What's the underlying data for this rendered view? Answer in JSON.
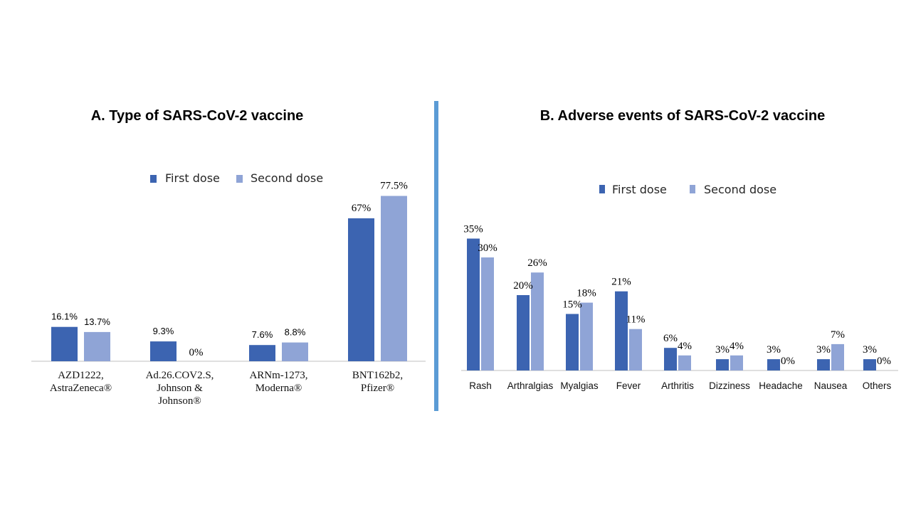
{
  "colors": {
    "first": "#3c64b1",
    "second": "#8fa4d6",
    "divider": "#5b9bd5",
    "axis": "#bfbfbf"
  },
  "chart_data": [
    {
      "type": "bar",
      "title": "A. Type of SARS-CoV-2 vaccine",
      "legend": [
        "First dose",
        "Second dose"
      ],
      "legend_position": "top-center",
      "categories": [
        [
          "AZD1222,",
          "AstraZeneca®"
        ],
        [
          "Ad.26.COV2.S,",
          "Johnson &",
          "Johnson®"
        ],
        [
          "ARNm-1273,",
          "Moderna®"
        ],
        [
          "BNT162b2,",
          "Pfizer®"
        ]
      ],
      "series": [
        {
          "name": "First dose",
          "values": [
            16.1,
            9.3,
            7.6,
            67
          ],
          "labels": [
            "16.1%",
            "9.3%",
            "7.6%",
            "67%"
          ]
        },
        {
          "name": "Second dose",
          "values": [
            13.7,
            0,
            8.8,
            77.5
          ],
          "labels": [
            "13.7%",
            "0%",
            "8.8%",
            "77.5%"
          ]
        }
      ],
      "ylim": [
        0,
        90
      ]
    },
    {
      "type": "bar",
      "title": "B. Adverse events of SARS-CoV-2 vaccine",
      "legend": [
        "First dose",
        "Second dose"
      ],
      "legend_position": "top-center",
      "categories": [
        "Rash",
        "Arthralgias",
        "Myalgias",
        "Fever",
        "Arthritis",
        "Dizziness",
        "Headache",
        "Nausea",
        "Others"
      ],
      "series": [
        {
          "name": "First dose",
          "values": [
            35,
            20,
            15,
            21,
            6,
            3,
            3,
            3,
            3
          ],
          "labels": [
            "35%",
            "20%",
            "15%",
            "21%",
            "6%",
            "3%",
            "3%",
            "3%",
            "3%"
          ]
        },
        {
          "name": "Second dose",
          "values": [
            30,
            26,
            18,
            11,
            4,
            4,
            0,
            7,
            0
          ],
          "labels": [
            "30%",
            "26%",
            "18%",
            "11%",
            "4%",
            "4%",
            "0%",
            "7%",
            "0%"
          ]
        }
      ],
      "ylim": [
        0,
        40
      ]
    }
  ]
}
